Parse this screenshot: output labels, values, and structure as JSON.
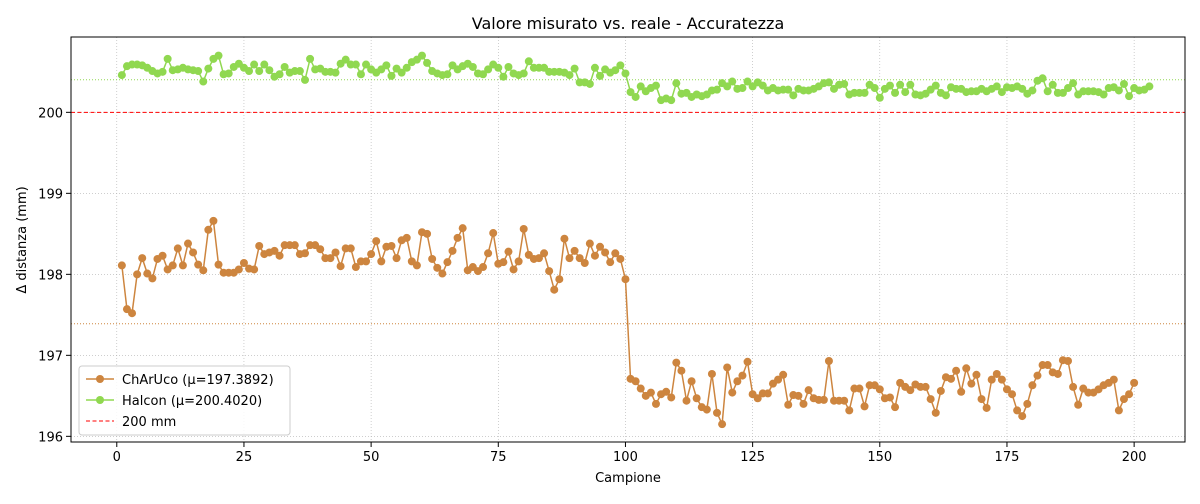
{
  "chart_data": {
    "type": "line",
    "title": "Valore misurato vs. reale - Accuratezza",
    "xlabel": "Campione",
    "ylabel": "Δ distanza (mm)",
    "xlim": [
      -9,
      210
    ],
    "ylim": [
      195.93,
      200.93
    ],
    "xticks": [
      0,
      25,
      50,
      75,
      100,
      125,
      150,
      175,
      200
    ],
    "yticks": [
      196,
      197,
      198,
      199,
      200
    ],
    "grid": true,
    "legend_position": "lower-left",
    "reference_line": {
      "label": "200 mm",
      "y": 200,
      "color": "#ff0000",
      "style": "dashed"
    },
    "series": [
      {
        "name": "ChArUco (μ=197.3892)",
        "color": "#cd853f",
        "mean": 197.3892,
        "x_start": 1,
        "values": [
          198.11,
          197.57,
          197.52,
          198.0,
          198.2,
          198.01,
          197.95,
          198.19,
          198.23,
          198.06,
          198.11,
          198.32,
          198.11,
          198.38,
          198.27,
          198.12,
          198.05,
          198.55,
          198.66,
          198.12,
          198.02,
          198.02,
          198.02,
          198.06,
          198.14,
          198.07,
          198.06,
          198.35,
          198.25,
          198.27,
          198.29,
          198.23,
          198.36,
          198.36,
          198.36,
          198.25,
          198.26,
          198.36,
          198.36,
          198.31,
          198.2,
          198.2,
          198.27,
          198.1,
          198.32,
          198.32,
          198.09,
          198.16,
          198.16,
          198.25,
          198.41,
          198.16,
          198.34,
          198.35,
          198.2,
          198.42,
          198.45,
          198.16,
          198.11,
          198.52,
          198.5,
          198.19,
          198.08,
          198.01,
          198.15,
          198.29,
          198.45,
          198.57,
          198.05,
          198.09,
          198.04,
          198.09,
          198.26,
          198.51,
          198.13,
          198.15,
          198.28,
          198.06,
          198.16,
          198.56,
          198.24,
          198.19,
          198.2,
          198.26,
          198.04,
          197.81,
          197.94,
          198.44,
          198.2,
          198.29,
          198.2,
          198.14,
          198.38,
          198.23,
          198.34,
          198.27,
          198.15,
          198.26,
          198.19,
          197.94,
          196.71,
          196.68,
          196.59,
          196.5,
          196.54,
          196.4,
          196.52,
          196.55,
          196.48,
          196.91,
          196.81,
          196.44,
          196.68,
          196.47,
          196.36,
          196.33,
          196.77,
          196.29,
          196.15,
          196.85,
          196.54,
          196.68,
          196.75,
          196.92,
          196.52,
          196.47,
          196.53,
          196.53,
          196.65,
          196.7,
          196.76,
          196.39,
          196.51,
          196.5,
          196.4,
          196.57,
          196.47,
          196.45,
          196.45,
          196.93,
          196.44,
          196.44,
          196.44,
          196.32,
          196.59,
          196.59,
          196.37,
          196.63,
          196.63,
          196.58,
          196.47,
          196.48,
          196.36,
          196.66,
          196.61,
          196.57,
          196.64,
          196.61,
          196.61,
          196.46,
          196.29,
          196.56,
          196.73,
          196.71,
          196.81,
          196.55,
          196.84,
          196.65,
          196.76,
          196.46,
          196.35,
          196.7,
          196.77,
          196.7,
          196.58,
          196.52,
          196.32,
          196.25,
          196.4,
          196.63,
          196.75,
          196.88,
          196.88,
          196.79,
          196.77,
          196.94,
          196.93,
          196.61,
          196.39,
          196.59,
          196.54,
          196.54,
          196.58,
          196.63,
          196.66,
          196.7,
          196.32,
          196.46,
          196.52,
          196.66
        ]
      },
      {
        "name": "Halcon (μ=200.4020)",
        "color": "#90d850",
        "mean": 200.402,
        "x_start": 1,
        "values": [
          200.46,
          200.57,
          200.59,
          200.59,
          200.58,
          200.55,
          200.51,
          200.48,
          200.5,
          200.66,
          200.52,
          200.53,
          200.55,
          200.53,
          200.52,
          200.51,
          200.38,
          200.54,
          200.66,
          200.7,
          200.47,
          200.48,
          200.56,
          200.6,
          200.55,
          200.51,
          200.59,
          200.51,
          200.59,
          200.52,
          200.44,
          200.47,
          200.56,
          200.49,
          200.51,
          200.51,
          200.4,
          200.66,
          200.53,
          200.54,
          200.5,
          200.5,
          200.49,
          200.6,
          200.65,
          200.59,
          200.59,
          200.47,
          200.59,
          200.53,
          200.49,
          200.53,
          200.58,
          200.45,
          200.54,
          200.49,
          200.55,
          200.62,
          200.65,
          200.7,
          200.61,
          200.51,
          200.48,
          200.46,
          200.47,
          200.58,
          200.53,
          200.57,
          200.6,
          200.56,
          200.48,
          200.47,
          200.53,
          200.59,
          200.55,
          200.44,
          200.56,
          200.48,
          200.46,
          200.48,
          200.63,
          200.55,
          200.55,
          200.55,
          200.5,
          200.5,
          200.5,
          200.49,
          200.46,
          200.54,
          200.37,
          200.37,
          200.35,
          200.55,
          200.45,
          200.53,
          200.49,
          200.52,
          200.58,
          200.48,
          200.25,
          200.19,
          200.32,
          200.26,
          200.3,
          200.33,
          200.15,
          200.17,
          200.15,
          200.36,
          200.23,
          200.24,
          200.19,
          200.22,
          200.2,
          200.22,
          200.27,
          200.28,
          200.36,
          200.32,
          200.38,
          200.29,
          200.3,
          200.38,
          200.32,
          200.37,
          200.33,
          200.27,
          200.3,
          200.27,
          200.28,
          200.28,
          200.21,
          200.29,
          200.27,
          200.27,
          200.29,
          200.32,
          200.36,
          200.37,
          200.29,
          200.34,
          200.35,
          200.22,
          200.24,
          200.24,
          200.24,
          200.34,
          200.3,
          200.18,
          200.29,
          200.33,
          200.24,
          200.34,
          200.25,
          200.34,
          200.22,
          200.21,
          200.23,
          200.28,
          200.33,
          200.24,
          200.21,
          200.31,
          200.29,
          200.29,
          200.25,
          200.26,
          200.26,
          200.29,
          200.26,
          200.29,
          200.32,
          200.25,
          200.31,
          200.3,
          200.32,
          200.29,
          200.23,
          200.27,
          200.39,
          200.42,
          200.26,
          200.34,
          200.24,
          200.24,
          200.3,
          200.36,
          200.22,
          200.26,
          200.26,
          200.26,
          200.25,
          200.22,
          200.3,
          200.31,
          200.27,
          200.35,
          200.2,
          200.3,
          200.27,
          200.28,
          200.32
        ]
      }
    ]
  }
}
